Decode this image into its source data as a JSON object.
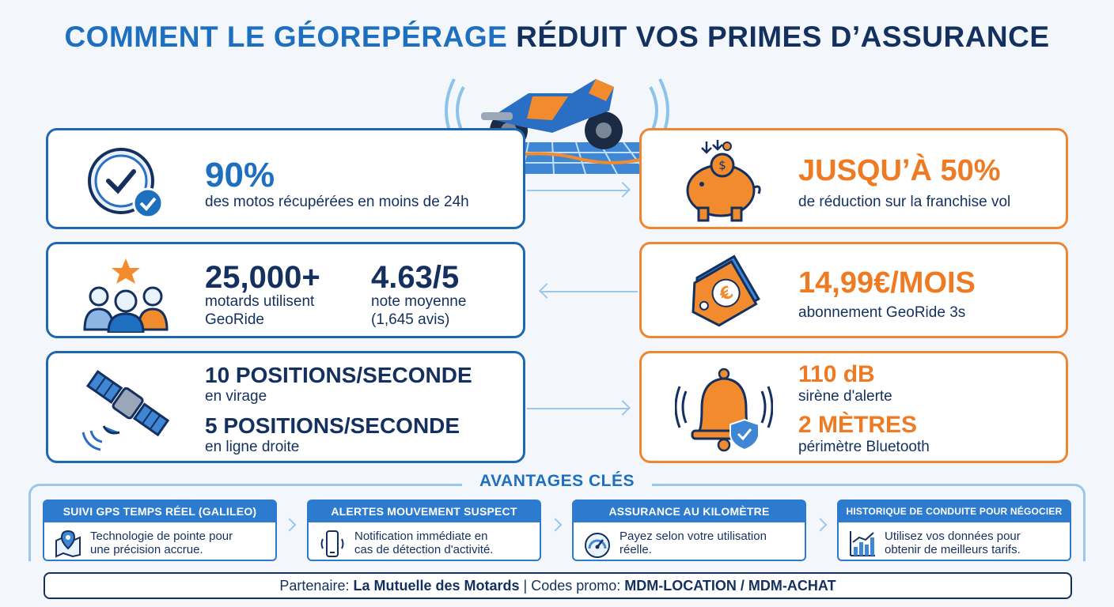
{
  "title": {
    "part1": "COMMENT LE GÉOREPÉRAGE",
    "part2": "RÉDUIT VOS PRIMES D’ASSURANCE"
  },
  "cards": {
    "recovery": {
      "value": "90%",
      "label": "des motos récupérées en moins de 24h"
    },
    "users": {
      "value": "25,000+",
      "label_line1": "motards utilisent",
      "label_line2": "GeoRide"
    },
    "rating": {
      "value": "4.63/5",
      "label_line1": "note moyenne",
      "label_line2": "(1,645 avis)"
    },
    "positions": {
      "value1": "10 POSITIONS/SECONDE",
      "label1": "en virage",
      "value2": "5 POSITIONS/SECONDE",
      "label2": "en ligne droite"
    },
    "discount": {
      "value": "JUSQU’À 50%",
      "label": "de réduction sur la franchise vol"
    },
    "price": {
      "value": "14,99€/MOIS",
      "label": "abonnement GeoRide 3s"
    },
    "siren": {
      "value1": "110 dB",
      "label1": "sirène d'alerte",
      "value2": "2 MÈTRES",
      "label2": "périmètre Bluetooth"
    }
  },
  "advantages": {
    "heading": "AVANTAGES CLÉS",
    "items": [
      {
        "title": "SUIVI GPS TEMPS RÉEL (GALILEO)",
        "line1": "Technologie de pointe pour",
        "line2": "une précision accrue.",
        "icon": "map-pin-icon"
      },
      {
        "title": "ALERTES MOUVEMENT SUSPECT",
        "line1": "Notification immédiate en",
        "line2": "cas de détection d'activité.",
        "icon": "phone-vibrate-icon"
      },
      {
        "title": "ASSURANCE AU KILOMÈTRE",
        "line1": "Payez selon votre utilisation",
        "line2": "réelle.",
        "icon": "speedometer-icon"
      },
      {
        "title": "HISTORIQUE DE CONDUITE POUR NÉGOCIER",
        "line1": "Utilisez vos données pour",
        "line2": "obtenir de meilleurs tarifs.",
        "icon": "bar-chart-icon"
      }
    ]
  },
  "footer": {
    "partner_label": "Partenaire:",
    "partner_name": "La Mutuelle des Motards",
    "promo_label": "| Codes promo:",
    "promo_codes": "MDM-LOCATION / MDM-ACHAT"
  },
  "colors": {
    "navy": "#13305f",
    "blue": "#1e6fc0",
    "orange": "#ee7b23"
  }
}
